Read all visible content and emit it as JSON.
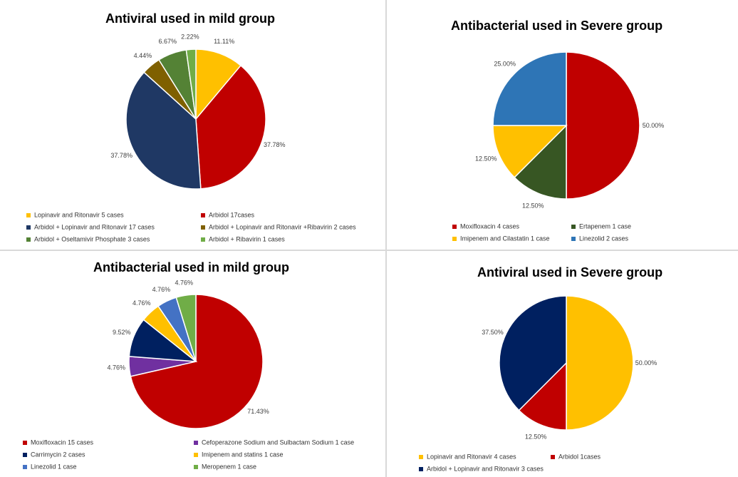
{
  "chart_data": [
    {
      "type": "pie",
      "title": "Antiviral used in mild group",
      "categories": [
        "Lopinavir and Ritonavir 5 cases",
        "Arbidol 17cases",
        "Arbidol + Lopinavir and Ritonavir 17 cases",
        "Arbidol + Lopinavir and Ritonavir +Ribavirin 2 cases",
        "Arbidol + Oseltamivir Phosphate 3 cases",
        "Arbidol + Ribavirin 1 cases"
      ],
      "values": [
        11.11,
        37.78,
        37.78,
        4.44,
        6.67,
        2.22
      ],
      "labels": [
        "11.11%",
        "37.78%",
        "37.78%",
        "4.44%",
        "6.67%",
        "2.22%"
      ],
      "colors": [
        "#ffc000",
        "#c00000",
        "#1f3864",
        "#7f6000",
        "#548235",
        "#70ad47"
      ],
      "legend_position": "bottom"
    },
    {
      "type": "pie",
      "title": "Antibacterial used in Severe group",
      "categories": [
        "Moxifloxacin 4 cases",
        "Ertapenem 1 case",
        "Imipenem and Cilastatin 1 case",
        "Linezolid 2 cases"
      ],
      "values": [
        50.0,
        12.5,
        12.5,
        25.0
      ],
      "labels": [
        "50.00%",
        "12.50%",
        "12.50%",
        "25.00%"
      ],
      "colors": [
        "#c00000",
        "#375623",
        "#ffc000",
        "#2e75b6"
      ],
      "legend_position": "bottom"
    },
    {
      "type": "pie",
      "title": "Antibacterial used in mild group",
      "categories": [
        "Moxifloxacin 15 cases",
        "Cefoperazone Sodium and Sulbactam Sodium 1 case",
        "Carrimycin 2 cases",
        "Imipenem and statins 1 case",
        "Linezolid 1 case",
        "Meropenem 1 case"
      ],
      "values": [
        71.43,
        4.76,
        9.52,
        4.76,
        4.76,
        4.76
      ],
      "labels": [
        "71.43%",
        "4.76%",
        "9.52%",
        "4.76%",
        "4.76%",
        "4.76%"
      ],
      "colors": [
        "#c00000",
        "#7030a0",
        "#002060",
        "#ffc000",
        "#4472c4",
        "#70ad47"
      ],
      "legend_position": "bottom"
    },
    {
      "type": "pie",
      "title": "Antiviral used in Severe group",
      "categories": [
        "Lopinavir and Ritonavir 4 cases",
        "Arbidol 1cases",
        "Arbidol + Lopinavir and Ritonavir 3 cases"
      ],
      "values": [
        50.0,
        12.5,
        37.5
      ],
      "labels": [
        "50.00%",
        "12.50%",
        "37.50%"
      ],
      "colors": [
        "#ffc000",
        "#c00000",
        "#002060"
      ],
      "legend_position": "bottom"
    }
  ]
}
